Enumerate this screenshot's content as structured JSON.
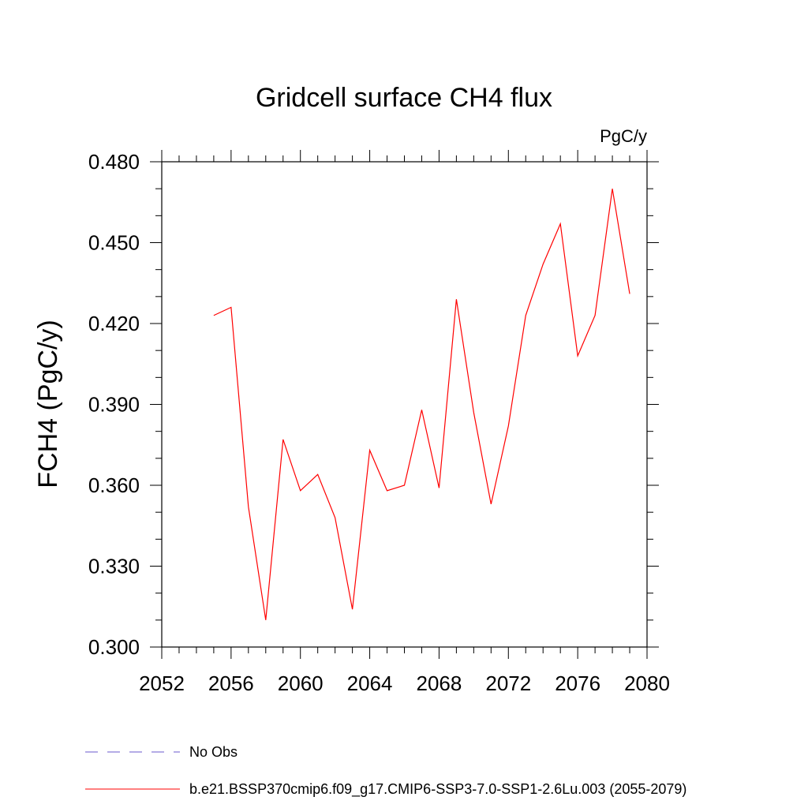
{
  "chart_data": {
    "type": "line",
    "title": "Gridcell surface CH4 flux",
    "units_label": "PgC/y",
    "ylabel": "FCH4  (PgC/y)",
    "xlabel": "",
    "xlim": [
      2052,
      2080
    ],
    "ylim": [
      0.3,
      0.48
    ],
    "x_ticks": [
      2052,
      2056,
      2060,
      2064,
      2068,
      2072,
      2076,
      2080
    ],
    "x_tick_labels": [
      "2052",
      "2056",
      "2060",
      "2064",
      "2068",
      "2072",
      "2076",
      "2080"
    ],
    "x_minor_step": 1,
    "y_ticks": [
      0.3,
      0.33,
      0.36,
      0.39,
      0.42,
      0.45,
      0.48
    ],
    "y_tick_labels": [
      "0.300",
      "0.330",
      "0.360",
      "0.390",
      "0.420",
      "0.450",
      "0.480"
    ],
    "y_minor_step": 0.01,
    "grid": false,
    "legend_position": "bottom",
    "series": [
      {
        "name": "b.e21.BSSP370cmip6.f09_g17.CMIP6-SSP3-7.0-SSP1-2.6Lu.003 (2055-2079)",
        "color": "#ff0000",
        "style": "solid",
        "x": [
          2055,
          2056,
          2057,
          2058,
          2059,
          2060,
          2061,
          2062,
          2063,
          2064,
          2065,
          2066,
          2067,
          2068,
          2069,
          2070,
          2071,
          2072,
          2073,
          2074,
          2075,
          2076,
          2077,
          2078,
          2079
        ],
        "y": [
          0.423,
          0.426,
          0.352,
          0.31,
          0.377,
          0.358,
          0.364,
          0.348,
          0.314,
          0.373,
          0.358,
          0.36,
          0.388,
          0.359,
          0.429,
          0.387,
          0.353,
          0.382,
          0.423,
          0.442,
          0.457,
          0.408,
          0.423,
          0.47,
          0.431
        ]
      },
      {
        "name": "No Obs",
        "color": "#6a5acd",
        "style": "dashed",
        "x": [],
        "y": []
      }
    ]
  }
}
